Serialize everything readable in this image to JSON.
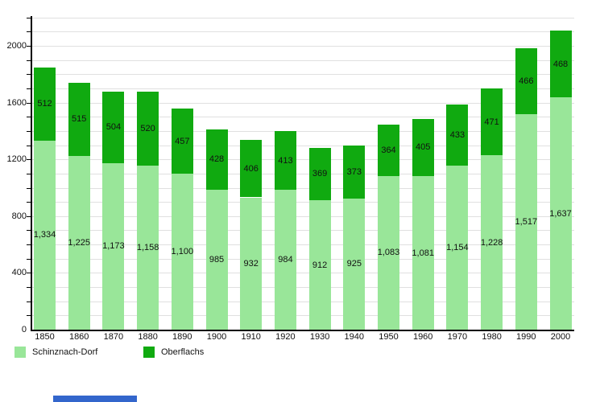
{
  "chart_data": {
    "type": "bar",
    "stacked": true,
    "title": "",
    "categories": [
      "1850",
      "1860",
      "1870",
      "1880",
      "1890",
      "1900",
      "1910",
      "1920",
      "1930",
      "1940",
      "1950",
      "1960",
      "1970",
      "1980",
      "1990",
      "2000"
    ],
    "series": [
      {
        "name": "Schinznach-Dorf",
        "color": "#99e699",
        "values": [
          1334,
          1225,
          1173,
          1158,
          1100,
          985,
          932,
          984,
          912,
          925,
          1083,
          1081,
          1154,
          1228,
          1517,
          1637
        ]
      },
      {
        "name": "Oberflachs",
        "color": "#10aa10",
        "values": [
          512,
          515,
          504,
          520,
          457,
          428,
          406,
          413,
          369,
          373,
          364,
          405,
          433,
          471,
          466,
          468
        ]
      }
    ],
    "xlabel": "",
    "ylabel": "",
    "y_ticks_labeled": [
      0,
      400,
      800,
      1200,
      1600,
      2000
    ],
    "minor_grid_interval": 100,
    "ylim": [
      0,
      2210
    ],
    "grid": "horizontal-minor-lines",
    "legend_position": "bottom-left",
    "value_labels": "centered-in-each-segment, thousands comma-separated"
  },
  "colors": {
    "background": "#ffffff",
    "gridline": "#e0e0e0",
    "axis": "#000000",
    "label_text": "#111111",
    "link_bar": "#3366cc"
  }
}
